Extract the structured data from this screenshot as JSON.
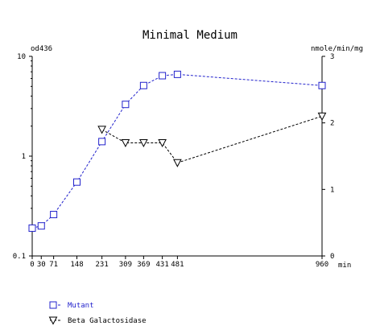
{
  "chart_data": {
    "type": "line",
    "title": "Minimal Medium",
    "y_left": {
      "label": "od436",
      "scale": "log",
      "range": [
        0.1,
        10
      ],
      "ticks": [
        0.1,
        1,
        10
      ],
      "tick_labels": [
        "0.1",
        "1",
        "10"
      ]
    },
    "y_right": {
      "label": "nmole/min/mg",
      "scale": "linear",
      "range": [
        0,
        3
      ],
      "ticks": [
        0,
        1,
        2,
        3
      ],
      "tick_labels": [
        "0",
        "1",
        "2",
        "3"
      ]
    },
    "x": {
      "label": "min",
      "range": [
        0,
        960
      ],
      "ticks": [
        0,
        30,
        71,
        148,
        231,
        309,
        369,
        431,
        481,
        960
      ],
      "tick_labels": [
        "0",
        "30",
        "71",
        "148",
        "231",
        "309",
        "369",
        "431",
        "481",
        "960"
      ]
    },
    "grid": false,
    "legend_placement": "bottom-left",
    "series": [
      {
        "name": "Mutant",
        "axis": "left",
        "marker": "square",
        "color": "#2222cc",
        "line_style": "dashed",
        "x": [
          0,
          30,
          71,
          148,
          231,
          309,
          369,
          431,
          481,
          960
        ],
        "y": [
          0.19,
          0.2,
          0.26,
          0.55,
          1.4,
          3.3,
          5.1,
          6.4,
          6.6,
          5.1
        ]
      },
      {
        "name": "Beta Galactosidase",
        "axis": "right",
        "marker": "triangle-down",
        "color": "#000000",
        "line_style": "dashed",
        "x": [
          231,
          309,
          369,
          431,
          481,
          960
        ],
        "y": [
          1.9,
          1.7,
          1.7,
          1.7,
          1.4,
          2.1
        ]
      }
    ]
  }
}
